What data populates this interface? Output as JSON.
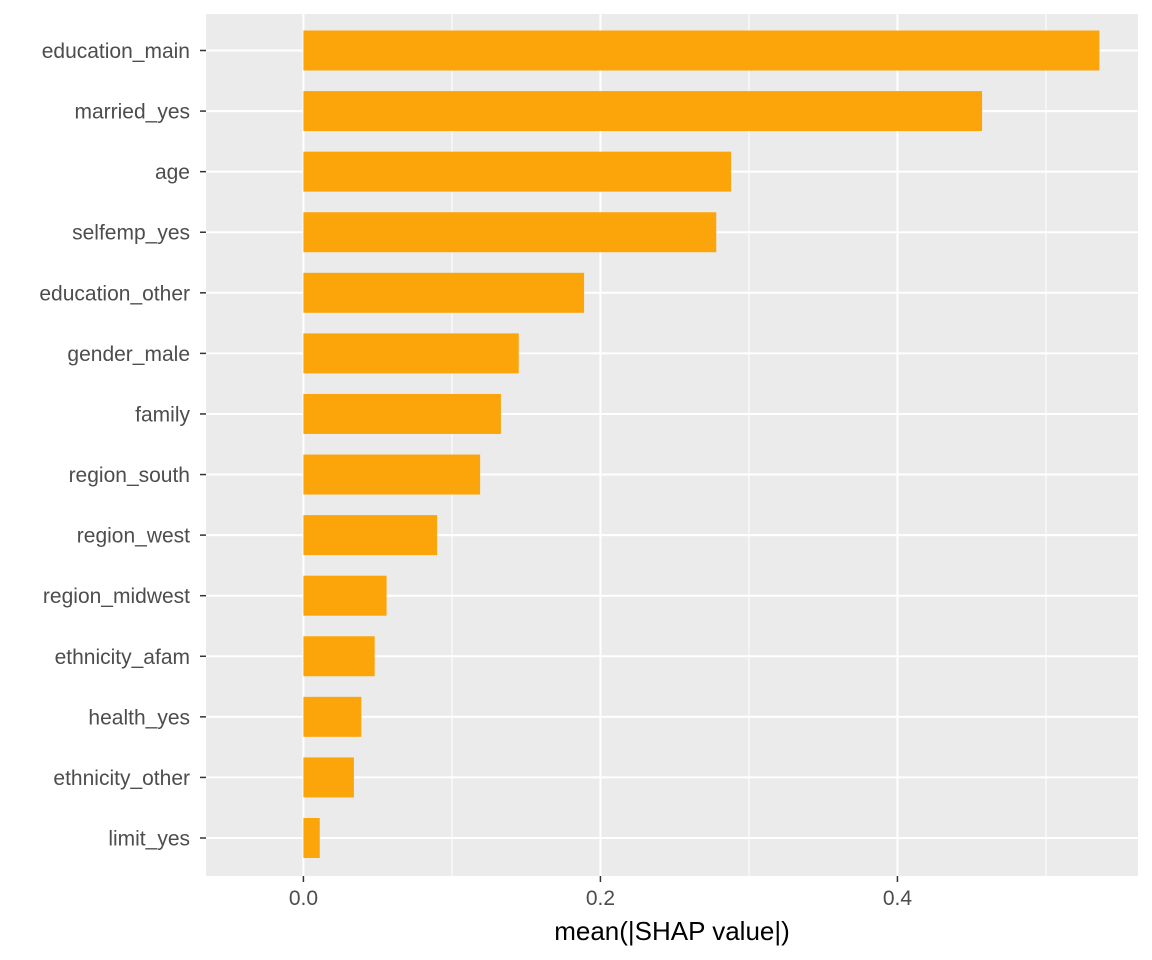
{
  "chart_data": {
    "type": "bar",
    "orientation": "horizontal",
    "title": "",
    "xlabel": "mean(|SHAP value|)",
    "ylabel": "",
    "xlim": [
      -0.0656,
      0.562
    ],
    "x_ticks": [
      0.0,
      0.2,
      0.4
    ],
    "x_tick_labels": [
      "0.0",
      "0.2",
      "0.4"
    ],
    "grid": true,
    "legend": "none",
    "bar_color": "#FCA50A",
    "panel_color": "#EBEBEB",
    "grid_color": "#FFFFFF",
    "categories": [
      "education_main",
      "married_yes",
      "age",
      "selfemp_yes",
      "education_other",
      "gender_male",
      "family",
      "region_south",
      "region_west",
      "region_midwest",
      "ethnicity_afam",
      "health_yes",
      "ethnicity_other",
      "limit_yes"
    ],
    "values": [
      0.536,
      0.457,
      0.288,
      0.278,
      0.189,
      0.145,
      0.133,
      0.119,
      0.09,
      0.056,
      0.048,
      0.039,
      0.034,
      0.011
    ]
  }
}
